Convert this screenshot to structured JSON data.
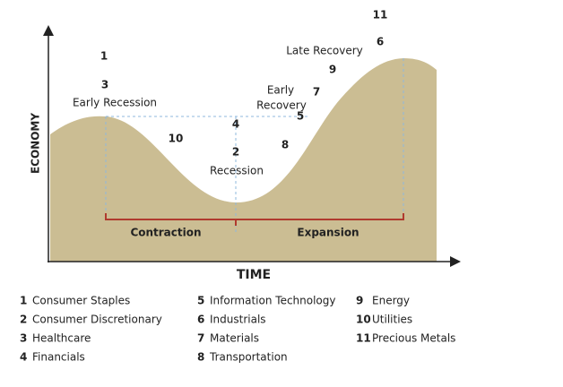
{
  "diagram": {
    "y_axis_label": "ECONOMY",
    "x_axis_label": "TIME",
    "phases": {
      "contraction": "Contraction",
      "expansion": "Expansion"
    },
    "stages": {
      "early_recession": "Early Recession",
      "recession": "Recession",
      "early_recovery": [
        "Early",
        "Recovery"
      ],
      "late_recovery": "Late Recovery"
    },
    "markers": [
      "1",
      "3",
      "10",
      "4",
      "2",
      "8",
      "5",
      "7",
      "9",
      "6",
      "11"
    ],
    "legend": [
      {
        "number": "1",
        "name": "Consumer Staples"
      },
      {
        "number": "2",
        "name": "Consumer Discretionary"
      },
      {
        "number": "3",
        "name": "Healthcare"
      },
      {
        "number": "4",
        "name": "Financials"
      },
      {
        "number": "5",
        "name": "Information Technology"
      },
      {
        "number": "6",
        "name": "Industrials"
      },
      {
        "number": "7",
        "name": "Materials"
      },
      {
        "number": "8",
        "name": "Transportation"
      },
      {
        "number": "9",
        "name": "Energy"
      },
      {
        "number": "10",
        "name": "Utilities"
      },
      {
        "number": "11",
        "name": "Precious Metals"
      }
    ]
  }
}
